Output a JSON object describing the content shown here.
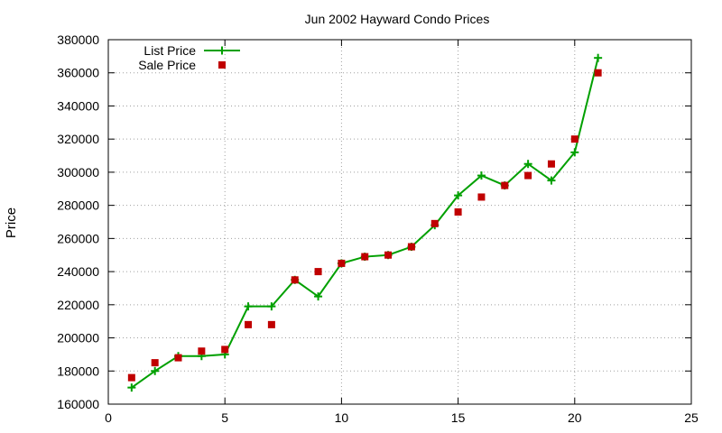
{
  "chart_data": {
    "type": "scatter",
    "title": "Jun 2002 Hayward Condo Prices",
    "xlabel": "",
    "ylabel": "Price",
    "xlim": [
      0,
      25
    ],
    "ylim": [
      160000,
      380000
    ],
    "xticks": [
      "0",
      "5",
      "10",
      "15",
      "20",
      "25"
    ],
    "yticks": [
      "160000",
      "180000",
      "200000",
      "220000",
      "240000",
      "260000",
      "280000",
      "300000",
      "320000",
      "340000",
      "360000",
      "380000"
    ],
    "grid": true,
    "legend_position": "top-left",
    "series": [
      {
        "name": "List Price",
        "style": "line+plus",
        "color": "#00a000",
        "points": [
          [
            1,
            170000
          ],
          [
            2,
            180000
          ],
          [
            3,
            189000
          ],
          [
            4,
            189000
          ],
          [
            5,
            190000
          ],
          [
            6,
            219000
          ],
          [
            7,
            219000
          ],
          [
            8,
            235000
          ],
          [
            9,
            225000
          ],
          [
            10,
            245000
          ],
          [
            11,
            249000
          ],
          [
            12,
            250000
          ],
          [
            13,
            255000
          ],
          [
            14,
            268000
          ],
          [
            15,
            286000
          ],
          [
            16,
            298000
          ],
          [
            17,
            292000
          ],
          [
            18,
            305000
          ],
          [
            19,
            295000
          ],
          [
            20,
            312000
          ],
          [
            21,
            369000
          ]
        ]
      },
      {
        "name": "Sale Price",
        "style": "square",
        "color": "#c00000",
        "points": [
          [
            1,
            176000
          ],
          [
            2,
            185000
          ],
          [
            3,
            188000
          ],
          [
            4,
            192000
          ],
          [
            5,
            193000
          ],
          [
            6,
            208000
          ],
          [
            7,
            208000
          ],
          [
            8,
            235000
          ],
          [
            9,
            240000
          ],
          [
            10,
            245000
          ],
          [
            11,
            249000
          ],
          [
            12,
            250000
          ],
          [
            13,
            255000
          ],
          [
            14,
            269000
          ],
          [
            15,
            276000
          ],
          [
            16,
            285000
          ],
          [
            17,
            292000
          ],
          [
            18,
            298000
          ],
          [
            19,
            305000
          ],
          [
            20,
            320000
          ],
          [
            21,
            360000
          ]
        ]
      }
    ]
  }
}
